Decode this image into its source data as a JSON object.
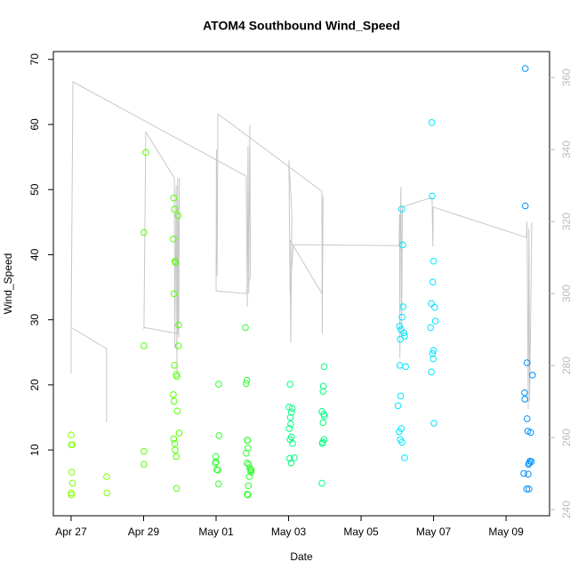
{
  "chart_data": {
    "type": "scatter",
    "title": "ATOM4 Southbound Wind_Speed",
    "xlabel": "Date",
    "ylabel": "Wind_Speed",
    "xlim": [
      -0.49,
      13.2
    ],
    "xticks": [
      {
        "value": 0,
        "label": "Apr 27"
      },
      {
        "value": 2,
        "label": "Apr 29"
      },
      {
        "value": 4,
        "label": "May 01"
      },
      {
        "value": 6,
        "label": "May 03"
      },
      {
        "value": 8,
        "label": "May 05"
      },
      {
        "value": 10,
        "label": "May 07"
      },
      {
        "value": 12,
        "label": "May 09"
      }
    ],
    "ylim": [
      -0.1,
      71.2
    ],
    "yticks": [
      10,
      20,
      30,
      40,
      50,
      60,
      70
    ],
    "y2lim": [
      238.3,
      367.2
    ],
    "y2ticks": [
      240,
      260,
      280,
      300,
      320,
      340,
      360
    ],
    "series": [
      {
        "color": "#80ff00",
        "x": [
          0.0,
          0.01,
          0.03,
          0.02,
          0.04,
          0.0,
          0.01,
          0.98,
          0.99
        ],
        "values": [
          12.3,
          10.8,
          10.8,
          6.6,
          4.9,
          3.4,
          3.1,
          5.9,
          3.4
        ]
      },
      {
        "color": "#55ff00",
        "x": [
          2.06,
          2.01,
          2.01,
          2.01,
          2.01,
          2.83,
          2.85,
          2.95,
          2.82,
          2.86,
          2.88,
          2.84,
          2.97,
          2.96,
          2.85,
          2.9,
          2.92,
          2.82,
          2.84,
          2.93,
          2.98,
          2.83,
          2.86,
          2.87,
          2.9,
          2.91
        ],
        "values": [
          55.7,
          43.4,
          26.0,
          9.8,
          7.8,
          48.7,
          47.0,
          46.0,
          42.4,
          39.0,
          38.8,
          34.0,
          29.2,
          26.0,
          23.0,
          21.6,
          21.3,
          18.5,
          17.5,
          16.0,
          12.6,
          11.7,
          11.0,
          10.0,
          9.0,
          4.1
        ]
      },
      {
        "color": "#2eff2e",
        "x": [
          4.07,
          4.08,
          3.99,
          4.0,
          3.98,
          4.02,
          4.05,
          4.07,
          4.81,
          4.85,
          4.83,
          4.86,
          4.87,
          4.88,
          4.83,
          4.85,
          4.9,
          4.93,
          4.95,
          4.97,
          4.96,
          4.92,
          4.89,
          4.86,
          4.88
        ],
        "values": [
          20.1,
          12.2,
          9.0,
          8.2,
          8.0,
          7.0,
          6.9,
          4.8,
          28.8,
          20.7,
          20.2,
          11.5,
          11.5,
          10.3,
          9.5,
          8.0,
          7.8,
          7.2,
          7.0,
          6.9,
          6.6,
          5.9,
          4.5,
          3.2,
          3.1
        ]
      },
      {
        "color": "#00ff80",
        "x": [
          6.04,
          6.01,
          6.1,
          6.08,
          6.05,
          6.06,
          6.02,
          6.08,
          6.04,
          6.11,
          6.03,
          6.16,
          6.07,
          6.98,
          6.96,
          6.95,
          6.92,
          6.97,
          6.99,
          6.95,
          6.98,
          6.94,
          6.93,
          6.92
        ],
        "values": [
          20.1,
          16.6,
          16.4,
          15.8,
          15.0,
          14.0,
          13.3,
          12.0,
          11.6,
          11.0,
          8.7,
          8.8,
          8.0,
          22.8,
          19.8,
          19.0,
          15.9,
          15.5,
          15.2,
          14.2,
          11.6,
          11.2,
          11.0,
          4.9
        ]
      },
      {
        "color": "#00e5ff",
        "x": [
          9.12,
          9.15,
          9.16,
          9.13,
          9.06,
          9.1,
          9.18,
          9.2,
          9.08,
          9.07,
          9.23,
          9.09,
          9.02,
          9.11,
          9.05,
          9.08,
          9.13,
          9.2,
          9.95,
          9.96,
          10.0,
          9.98,
          9.94,
          10.03,
          10.05,
          9.92,
          10.0,
          9.97,
          9.99,
          9.94,
          10.01
        ],
        "values": [
          47.0,
          41.5,
          32.0,
          30.4,
          29.0,
          28.5,
          28.0,
          27.5,
          27.0,
          23.0,
          22.8,
          18.3,
          16.8,
          13.3,
          12.8,
          11.6,
          11.2,
          8.8,
          60.3,
          49.0,
          39.0,
          35.8,
          32.5,
          31.9,
          29.8,
          28.8,
          25.3,
          24.8,
          24.0,
          22.0,
          14.1
        ]
      },
      {
        "color": "#0090ff",
        "x": [
          12.53,
          12.53,
          12.58,
          12.73,
          12.51,
          12.52,
          12.58,
          12.6,
          12.68,
          12.66,
          12.7,
          12.64,
          12.62,
          12.49,
          12.61,
          12.57,
          12.63
        ],
        "values": [
          68.6,
          47.5,
          23.4,
          21.5,
          18.8,
          17.8,
          14.8,
          12.9,
          12.7,
          8.3,
          8.2,
          8.0,
          7.8,
          6.4,
          6.3,
          4.0,
          4.0
        ]
      },
      {
        "type": "line",
        "axis": "y2",
        "color": "#c8c8c8",
        "x": [
          0.0,
          0.0,
          0.98,
          0.98,
          null,
          0.0,
          0.05,
          4.83,
          4.86,
          4.88,
          4.9,
          4.93,
          4.95,
          4.83,
          4.0,
          4.01,
          4.03,
          4.05,
          6.92,
          6.93,
          6.95,
          6.92,
          6.04,
          6.06,
          6.09,
          6.01,
          6.04,
          6.13,
          9.05,
          9.06,
          9.07,
          9.08,
          9.1,
          9.12,
          9.14,
          9.33,
          9.96,
          9.98,
          9.99,
          12.56,
          12.58,
          12.61,
          12.63,
          12.65,
          12.71,
          null,
          2.01,
          2.06,
          2.85,
          2.86,
          2.9,
          2.92,
          2.94,
          2.97,
          2.99,
          2.94,
          2.01
        ],
        "values": [
          277.8,
          290.6,
          284.7,
          264.2,
          null,
          290.1,
          358.8,
          332.6,
          296.3,
          341.0,
          300.0,
          346.9,
          305.0,
          300.0,
          300.7,
          340.0,
          305.0,
          349.9,
          328.4,
          288.9,
          327.0,
          300.0,
          314.8,
          286.4,
          322.2,
          337.0,
          300.0,
          313.6,
          313.3,
          322.0,
          282.0,
          318.0,
          329.6,
          290.0,
          324.0,
          324.7,
          326.7,
          313.0,
          324.0,
          315.6,
          320.0,
          267.9,
          318.0,
          270.0,
          319.8,
          null,
          290.1,
          344.9,
          332.1,
          285.0,
          330.0,
          277.8,
          332.1,
          287.7,
          332.1,
          288.9,
          290.6
        ]
      }
    ]
  }
}
